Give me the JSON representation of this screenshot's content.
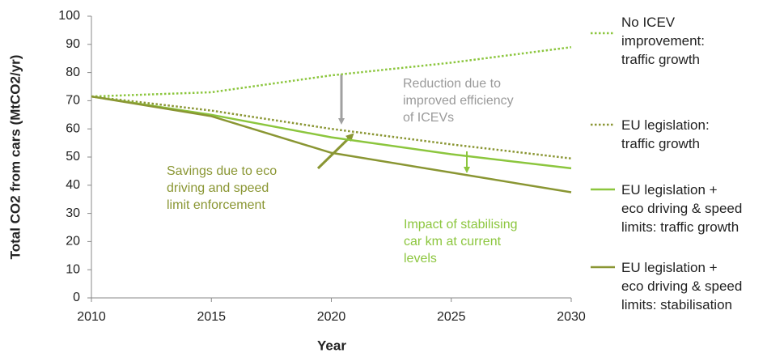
{
  "chart_data": {
    "type": "line",
    "x_label": "Year",
    "y_label": "Total CO2 from cars (MtCO2/yr)",
    "x": [
      2010,
      2015,
      2020,
      2025,
      2030
    ],
    "xlim": [
      2010,
      2030
    ],
    "xticks": [
      2010,
      2015,
      2020,
      2025,
      2030
    ],
    "ylim": [
      0,
      100
    ],
    "yticks": [
      0,
      10,
      20,
      30,
      40,
      50,
      60,
      70,
      80,
      90,
      100
    ],
    "series": [
      {
        "name": "No ICEV\nimprovement:\ntraffic growth",
        "color": "#8cc63e",
        "style": "dotted",
        "values": [
          71.5,
          73,
          79,
          83.5,
          89
        ]
      },
      {
        "name": "EU legislation:\ntraffic growth",
        "color": "#8a9633",
        "style": "dotted",
        "values": [
          71.5,
          66.5,
          60,
          54.5,
          49.5
        ]
      },
      {
        "name": "EU legislation +\neco driving & speed\nlimits: traffic growth",
        "color": "#8cc63e",
        "style": "solid",
        "values": [
          71.5,
          65,
          57,
          51,
          46
        ]
      },
      {
        "name": "EU legislation +\neco driving & speed\nlimits: stabilisation",
        "color": "#8a9633",
        "style": "solid",
        "values": [
          71.5,
          64.5,
          51.5,
          44.5,
          37.5
        ]
      }
    ],
    "annotations": [
      {
        "text": "Reduction due to\nimproved efficiency\nof ICEVs",
        "color": "#9a9a9a"
      },
      {
        "text": "Savings due to eco\ndriving and speed\nlimit enforcement",
        "color": "#8a9633"
      },
      {
        "text": "Impact of stabilising\ncar km at current\nlevels",
        "color": "#8cc63e"
      }
    ]
  }
}
